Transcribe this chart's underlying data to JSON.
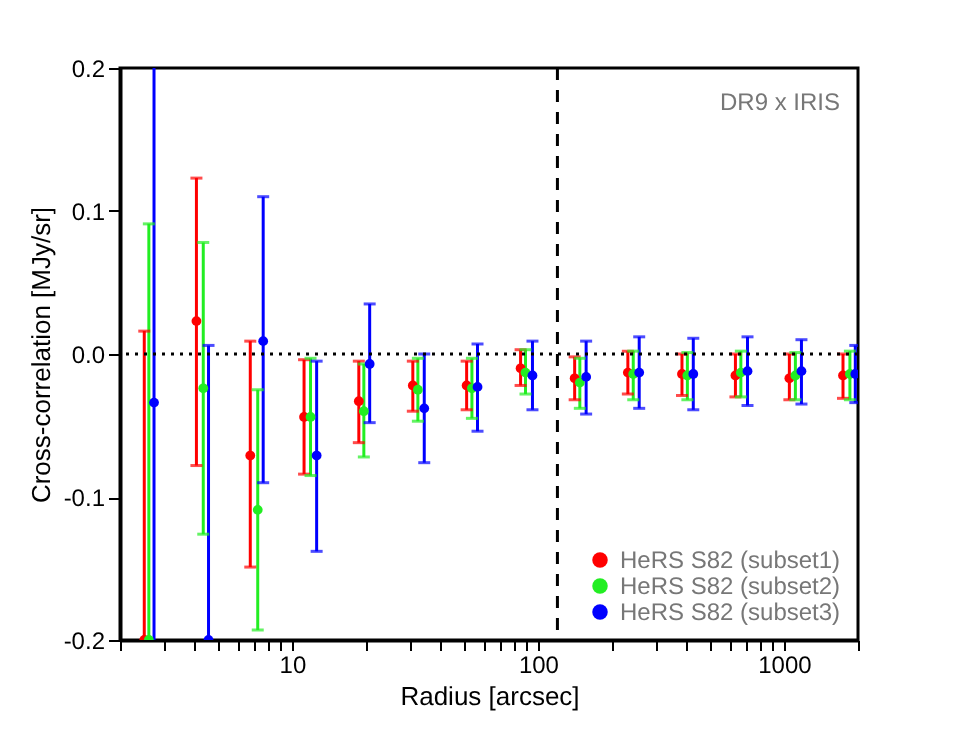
{
  "chart_data": {
    "type": "scatter",
    "xlabel": "Radius [arcsec]",
    "ylabel": "Cross-correlation [MJy/sr]",
    "annotations": [
      "DR9 x IRIS"
    ],
    "log": "x",
    "xlim": [
      2,
      2000
    ],
    "ylim": [
      -0.2,
      0.2
    ],
    "xticks": [
      {
        "value": 2,
        "label": null
      },
      {
        "value": 3,
        "label": null
      },
      {
        "value": 4,
        "label": null
      },
      {
        "value": 5,
        "label": null
      },
      {
        "value": 6,
        "label": null
      },
      {
        "value": 7,
        "label": null
      },
      {
        "value": 8,
        "label": null
      },
      {
        "value": 9,
        "label": null
      },
      10,
      {
        "value": 20,
        "label": null
      },
      {
        "value": 30,
        "label": null
      },
      {
        "value": 40,
        "label": null
      },
      {
        "value": 50,
        "label": null
      },
      {
        "value": 60,
        "label": null
      },
      {
        "value": 70,
        "label": null
      },
      {
        "value": 80,
        "label": null
      },
      {
        "value": 90,
        "label": null
      },
      100,
      {
        "value": 200,
        "label": null
      },
      {
        "value": 300,
        "label": null
      },
      {
        "value": 400,
        "label": null
      },
      {
        "value": 500,
        "label": null
      },
      {
        "value": 600,
        "label": null
      },
      {
        "value": 700,
        "label": null
      },
      {
        "value": 800,
        "label": null
      },
      {
        "value": 900,
        "label": null
      },
      1000,
      {
        "value": 2000,
        "label": null
      }
    ],
    "yticks": [
      {
        "value": -0.2,
        "label": "-0.2"
      },
      {
        "value": -0.1,
        "label": "-0.1"
      },
      {
        "value": 0,
        "label": "0.0"
      },
      {
        "value": 0.1,
        "label": "0.1"
      },
      {
        "value": 0.2,
        "label": "0.2"
      }
    ],
    "grid": false,
    "legend": "bottom right",
    "marker": "circle",
    "ref_lines": [
      {
        "axis": "y",
        "value": 0,
        "line_style": "dotted",
        "color": "#000000"
      },
      {
        "axis": "x",
        "value": 120,
        "line_style": "dashed",
        "color": "#000000"
      }
    ],
    "series": [
      {
        "name": "HeRS S82 (subset1)",
        "color": "#ff0000",
        "x": [
          2.51,
          4.09,
          6.77,
          11.2,
          18.7,
          31.0,
          51.3,
          85,
          141,
          232,
          385,
          635,
          1052,
          1738
        ],
        "values": [
          -0.2,
          0.023,
          -0.071,
          -0.044,
          -0.033,
          -0.022,
          -0.022,
          -0.01,
          -0.017,
          -0.013,
          -0.014,
          -0.015,
          -0.017,
          -0.015
        ],
        "errors": [
          [
            -0.2,
            0.016
          ],
          [
            -0.078,
            0.123
          ],
          [
            -0.149,
            0.009
          ],
          [
            -0.084,
            -0.004
          ],
          [
            -0.062,
            -0.005
          ],
          [
            -0.04,
            -0.005
          ],
          [
            -0.039,
            -0.005
          ],
          [
            -0.022,
            0.003
          ],
          [
            -0.032,
            -0.002
          ],
          [
            -0.028,
            0.002
          ],
          [
            -0.029,
            0
          ],
          [
            -0.03,
            0
          ],
          [
            -0.032,
            0
          ],
          [
            -0.031,
            0
          ]
        ]
      },
      {
        "name": "HeRS S82 (subset2)",
        "color": "#22ee22",
        "x": [
          2.62,
          4.36,
          7.26,
          11.9,
          19.6,
          32.5,
          53.9,
          89,
          148,
          244,
          405,
          668,
          1113,
          1854
        ],
        "values": [
          -0.2,
          -0.024,
          -0.109,
          -0.044,
          -0.04,
          -0.025,
          -0.024,
          -0.013,
          -0.02,
          -0.014,
          -0.015,
          -0.013,
          -0.015,
          -0.014
        ],
        "errors": [
          [
            -0.2,
            0.091
          ],
          [
            -0.126,
            0.078
          ],
          [
            -0.193,
            -0.025
          ],
          [
            -0.085,
            -0.003
          ],
          [
            -0.072,
            -0.007
          ],
          [
            -0.047,
            -0.003
          ],
          [
            -0.045,
            -0.003
          ],
          [
            -0.028,
            0.003
          ],
          [
            -0.038,
            -0.003
          ],
          [
            -0.032,
            0.002
          ],
          [
            -0.032,
            0.001
          ],
          [
            -0.03,
            0.002
          ],
          [
            -0.032,
            0.001
          ],
          [
            -0.032,
            0.002
          ]
        ]
      },
      {
        "name": "HeRS S82 (subset3)",
        "color": "#0000ff",
        "x": [
          2.75,
          4.58,
          7.64,
          12.6,
          20.7,
          34.5,
          56.8,
          95,
          157,
          258,
          428,
          711,
          1178,
          1950
        ],
        "values": [
          -0.034,
          -0.2,
          0.009,
          -0.071,
          -0.007,
          -0.038,
          -0.023,
          -0.015,
          -0.016,
          -0.013,
          -0.014,
          -0.012,
          -0.012,
          -0.014
        ],
        "errors": [
          [
            -0.2,
            0.2
          ],
          [
            -0.2,
            0.006
          ],
          [
            -0.09,
            0.11
          ],
          [
            -0.138,
            -0.005
          ],
          [
            -0.048,
            0.035
          ],
          [
            -0.076,
            0
          ],
          [
            -0.054,
            0.007
          ],
          [
            -0.039,
            0.009
          ],
          [
            -0.042,
            0.009
          ],
          [
            -0.038,
            0.012
          ],
          [
            -0.039,
            0.011
          ],
          [
            -0.036,
            0.012
          ],
          [
            -0.035,
            0.01
          ],
          [
            -0.034,
            0.006
          ]
        ]
      }
    ]
  }
}
